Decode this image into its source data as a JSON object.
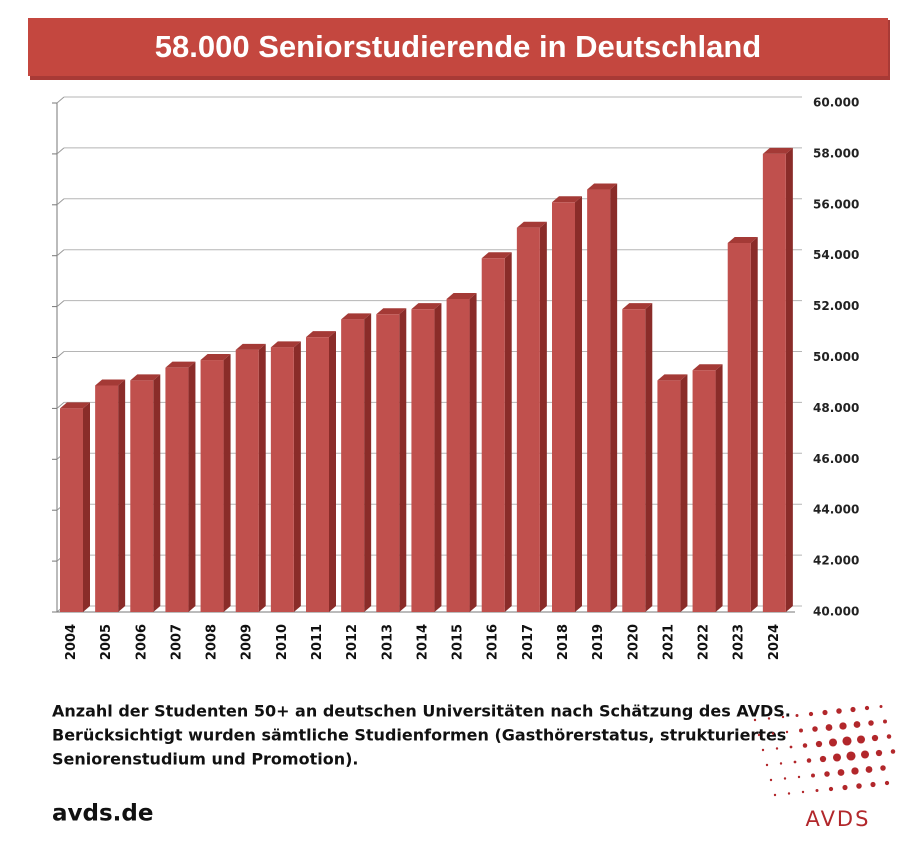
{
  "chart_data": {
    "type": "bar",
    "title": "58.000 Seniorstudierende in Deutschland",
    "categories": [
      "2004",
      "2005",
      "2006",
      "2007",
      "2008",
      "2009",
      "2010",
      "2011",
      "2012",
      "2013",
      "2014",
      "2015",
      "2016",
      "2017",
      "2018",
      "2019",
      "2020",
      "2021",
      "2022",
      "2023",
      "2024"
    ],
    "values": [
      48000,
      48900,
      49100,
      49600,
      49900,
      50300,
      50400,
      50800,
      51500,
      51700,
      51900,
      52300,
      53900,
      55100,
      56100,
      56600,
      51900,
      49100,
      49500,
      54500,
      58000
    ],
    "color": "#c0504d",
    "ylim": [
      40000,
      60000
    ],
    "yticks": [
      {
        "value": 40000,
        "label": "40.000"
      },
      {
        "value": 42000,
        "label": "42.000"
      },
      {
        "value": 44000,
        "label": "44.000"
      },
      {
        "value": 46000,
        "label": "46.000"
      },
      {
        "value": 48000,
        "label": "48.000"
      },
      {
        "value": 50000,
        "label": "50.000"
      },
      {
        "value": 52000,
        "label": "52.000"
      },
      {
        "value": 54000,
        "label": "54.000"
      },
      {
        "value": 56000,
        "label": "56.000"
      },
      {
        "value": 58000,
        "label": "58.000"
      },
      {
        "value": 60000,
        "label": "60.000"
      }
    ],
    "grid": true
  },
  "footer": {
    "note": [
      "Anzahl der Studenten 50+ an deutschen Universitäten nach Schätzung des AVDS.",
      "Berücksichtigt wurden sämtliche Studienformen (Gasthörerstatus, strukturiertes",
      "Seniorenstudium und Promotion)."
    ],
    "url": "avds.de",
    "logo": "AVDS"
  }
}
